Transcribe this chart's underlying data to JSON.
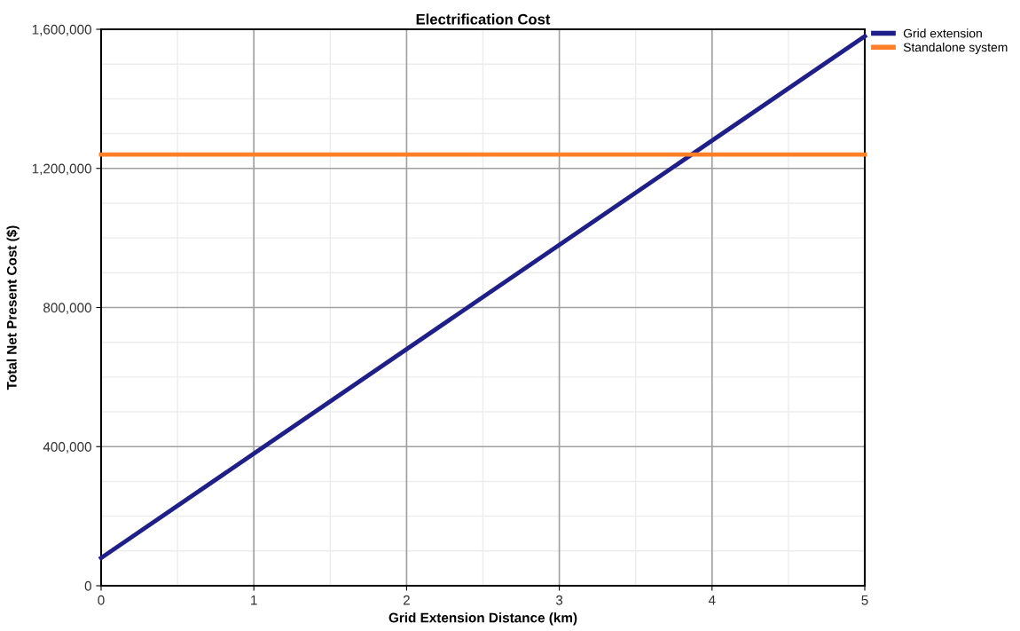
{
  "chart_data": {
    "type": "line",
    "title": "Electrification Cost",
    "xlabel": "Grid Extension Distance (km)",
    "ylabel": "Total Net Present Cost ($)",
    "xlim": [
      0,
      5
    ],
    "xticks": [
      0,
      1,
      2,
      3,
      4,
      5
    ],
    "ylim": [
      0,
      1600000
    ],
    "yticks": [
      {
        "value": 0,
        "label": "0"
      },
      {
        "value": 400000,
        "label": "400,000"
      },
      {
        "value": 800000,
        "label": "800,000"
      },
      {
        "value": 1200000,
        "label": "1,200,000"
      },
      {
        "value": 1600000,
        "label": "1,600,000"
      }
    ],
    "x": [
      0,
      5
    ],
    "grid": true,
    "legend": "top right",
    "marker": "none",
    "line_style": "solid",
    "series": [
      {
        "name": "Grid extension",
        "color": "#1f1f8c",
        "values": [
          80000,
          1580000
        ]
      },
      {
        "name": "Standalone system",
        "color": "#ff7f27",
        "values": [
          1240000,
          1240000
        ]
      }
    ]
  }
}
